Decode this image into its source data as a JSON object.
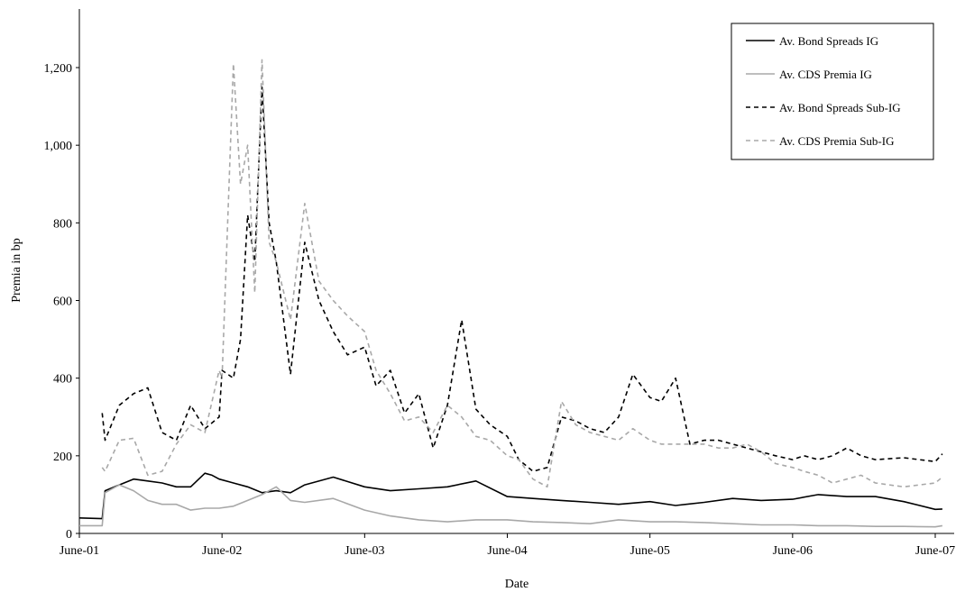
{
  "chart_data": {
    "type": "line",
    "title": "",
    "xlabel": "Date",
    "ylabel": "Premia in bp",
    "ylim": [
      0,
      1300
    ],
    "yticks": [
      0,
      200,
      400,
      600,
      800,
      1000,
      1200
    ],
    "ytick_labels": [
      "0",
      "200",
      "400",
      "600",
      "800",
      "1,000",
      "1,200"
    ],
    "xlim": [
      2001.42,
      2007.47
    ],
    "xticks": [
      2001.42,
      2002.42,
      2003.42,
      2004.42,
      2005.42,
      2006.42,
      2007.42
    ],
    "xtick_labels": [
      "June-01",
      "June-02",
      "June-03",
      "June-04",
      "June-05",
      "June-06",
      "June-07"
    ],
    "grid": false,
    "legend_position": "top-right",
    "series": [
      {
        "name": "Av. Bond Spreads IG",
        "color": "#000000",
        "dash": "solid",
        "x": [
          2001.42,
          2001.58,
          2001.6,
          2001.7,
          2001.8,
          2001.9,
          2002.0,
          2002.1,
          2002.2,
          2002.3,
          2002.35,
          2002.4,
          2002.5,
          2002.6,
          2002.7,
          2002.8,
          2002.9,
          2003.0,
          2003.2,
          2003.42,
          2003.6,
          2003.8,
          2004.0,
          2004.2,
          2004.42,
          2004.6,
          2004.8,
          2005.0,
          2005.2,
          2005.42,
          2005.6,
          2005.8,
          2006.0,
          2006.2,
          2006.42,
          2006.6,
          2006.8,
          2007.0,
          2007.2,
          2007.42,
          2007.47
        ],
        "y": [
          40,
          38,
          110,
          125,
          140,
          135,
          130,
          120,
          120,
          155,
          150,
          140,
          130,
          120,
          105,
          110,
          105,
          125,
          145,
          120,
          110,
          115,
          120,
          135,
          95,
          90,
          85,
          80,
          75,
          82,
          72,
          80,
          90,
          85,
          88,
          100,
          95,
          95,
          82,
          62,
          63
        ]
      },
      {
        "name": "Av. CDS Premia IG",
        "color": "#a8a8a8",
        "dash": "solid",
        "x": [
          2001.42,
          2001.58,
          2001.6,
          2001.7,
          2001.8,
          2001.9,
          2002.0,
          2002.1,
          2002.2,
          2002.3,
          2002.4,
          2002.5,
          2002.6,
          2002.7,
          2002.8,
          2002.9,
          2003.0,
          2003.2,
          2003.42,
          2003.6,
          2003.8,
          2004.0,
          2004.2,
          2004.42,
          2004.6,
          2004.8,
          2005.0,
          2005.2,
          2005.42,
          2005.6,
          2005.8,
          2006.0,
          2006.2,
          2006.42,
          2006.6,
          2006.8,
          2007.0,
          2007.2,
          2007.42,
          2007.47
        ],
        "y": [
          20,
          20,
          105,
          125,
          110,
          85,
          75,
          75,
          60,
          65,
          65,
          70,
          85,
          100,
          120,
          85,
          80,
          90,
          60,
          45,
          35,
          30,
          35,
          35,
          30,
          28,
          25,
          35,
          30,
          30,
          28,
          25,
          22,
          22,
          20,
          20,
          18,
          18,
          17,
          20
        ]
      },
      {
        "name": "Av. Bond Spreads Sub-IG",
        "color": "#000000",
        "dash": "5,4",
        "x": [
          2001.58,
          2001.6,
          2001.7,
          2001.8,
          2001.9,
          2002.0,
          2002.1,
          2002.2,
          2002.3,
          2002.4,
          2002.42,
          2002.5,
          2002.55,
          2002.6,
          2002.65,
          2002.7,
          2002.75,
          2002.8,
          2002.9,
          2003.0,
          2003.1,
          2003.2,
          2003.3,
          2003.42,
          2003.5,
          2003.6,
          2003.7,
          2003.8,
          2003.9,
          2004.0,
          2004.1,
          2004.2,
          2004.3,
          2004.42,
          2004.5,
          2004.6,
          2004.7,
          2004.8,
          2004.9,
          2005.0,
          2005.1,
          2005.2,
          2005.3,
          2005.42,
          2005.5,
          2005.6,
          2005.7,
          2005.8,
          2005.9,
          2006.0,
          2006.1,
          2006.2,
          2006.3,
          2006.42,
          2006.5,
          2006.6,
          2006.7,
          2006.8,
          2006.9,
          2007.0,
          2007.2,
          2007.42,
          2007.47
        ],
        "y": [
          310,
          240,
          330,
          360,
          375,
          260,
          240,
          330,
          270,
          300,
          420,
          400,
          500,
          820,
          700,
          1150,
          800,
          700,
          410,
          750,
          600,
          520,
          460,
          480,
          380,
          420,
          310,
          360,
          220,
          330,
          550,
          320,
          280,
          250,
          190,
          160,
          170,
          300,
          290,
          270,
          260,
          300,
          410,
          350,
          340,
          400,
          230,
          240,
          240,
          230,
          220,
          210,
          200,
          190,
          200,
          190,
          200,
          220,
          200,
          190,
          195,
          185,
          205
        ]
      },
      {
        "name": "Av. CDS Premia Sub-IG",
        "color": "#a8a8a8",
        "dash": "5,4",
        "x": [
          2001.58,
          2001.6,
          2001.7,
          2001.8,
          2001.9,
          2002.0,
          2002.1,
          2002.2,
          2002.3,
          2002.4,
          2002.42,
          2002.5,
          2002.55,
          2002.6,
          2002.65,
          2002.7,
          2002.75,
          2002.8,
          2002.9,
          2003.0,
          2003.1,
          2003.2,
          2003.3,
          2003.42,
          2003.5,
          2003.6,
          2003.7,
          2003.8,
          2003.9,
          2004.0,
          2004.1,
          2004.2,
          2004.3,
          2004.42,
          2004.5,
          2004.6,
          2004.7,
          2004.8,
          2004.9,
          2005.0,
          2005.1,
          2005.2,
          2005.3,
          2005.42,
          2005.5,
          2005.6,
          2005.7,
          2005.8,
          2005.9,
          2006.0,
          2006.1,
          2006.2,
          2006.3,
          2006.42,
          2006.5,
          2006.6,
          2006.7,
          2006.8,
          2006.9,
          2007.0,
          2007.2,
          2007.42,
          2007.47
        ],
        "y": [
          170,
          160,
          240,
          245,
          150,
          160,
          230,
          280,
          260,
          420,
          400,
          1210,
          900,
          1000,
          620,
          1220,
          750,
          700,
          550,
          850,
          650,
          600,
          560,
          520,
          420,
          360,
          290,
          300,
          260,
          330,
          300,
          250,
          240,
          200,
          190,
          140,
          120,
          340,
          280,
          260,
          250,
          240,
          270,
          240,
          230,
          230,
          230,
          230,
          220,
          220,
          230,
          210,
          180,
          170,
          160,
          150,
          130,
          140,
          150,
          130,
          120,
          130,
          145
        ]
      }
    ]
  }
}
